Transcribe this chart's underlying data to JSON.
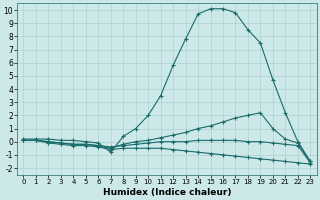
{
  "bg_color": "#cce8e8",
  "grid_color": "#b0d0d0",
  "line_color": "#1a6b6b",
  "xlabel": "Humidex (Indice chaleur)",
  "xlim": [
    -0.5,
    23.5
  ],
  "ylim": [
    -2.5,
    10.5
  ],
  "xticks": [
    0,
    1,
    2,
    3,
    4,
    5,
    6,
    7,
    8,
    9,
    10,
    11,
    12,
    13,
    14,
    15,
    16,
    17,
    18,
    19,
    20,
    21,
    22,
    23
  ],
  "yticks": [
    -2,
    -1,
    0,
    1,
    2,
    3,
    4,
    5,
    6,
    7,
    8,
    9,
    10
  ],
  "lines": [
    {
      "x": [
        0,
        1,
        2,
        3,
        4,
        5,
        6,
        7,
        8,
        9,
        10,
        11,
        12,
        13,
        14,
        15,
        16,
        17,
        18,
        19,
        20,
        21,
        22,
        23
      ],
      "y": [
        0.2,
        0.2,
        0.2,
        0.1,
        0.1,
        0.0,
        -0.1,
        -0.8,
        0.4,
        1.0,
        2.0,
        3.5,
        5.8,
        7.8,
        9.7,
        10.1,
        10.1,
        9.8,
        8.5,
        7.5,
        4.7,
        2.2,
        0.0,
        -1.5
      ]
    },
    {
      "x": [
        0,
        1,
        2,
        3,
        4,
        5,
        6,
        7,
        8,
        9,
        10,
        11,
        12,
        13,
        14,
        15,
        16,
        17,
        18,
        19,
        20,
        21,
        22,
        23
      ],
      "y": [
        0.1,
        0.1,
        0.0,
        -0.1,
        -0.2,
        -0.2,
        -0.3,
        -0.5,
        -0.2,
        0.0,
        0.1,
        0.3,
        0.5,
        0.7,
        1.0,
        1.2,
        1.5,
        1.8,
        2.0,
        2.2,
        1.0,
        0.2,
        -0.1,
        -1.5
      ]
    },
    {
      "x": [
        0,
        1,
        2,
        3,
        4,
        5,
        6,
        7,
        8,
        9,
        10,
        11,
        12,
        13,
        14,
        15,
        16,
        17,
        18,
        19,
        20,
        21,
        22,
        23
      ],
      "y": [
        0.1,
        0.1,
        -0.1,
        -0.2,
        -0.3,
        -0.3,
        -0.4,
        -0.6,
        -0.5,
        -0.5,
        -0.5,
        -0.5,
        -0.6,
        -0.7,
        -0.8,
        -0.9,
        -1.0,
        -1.1,
        -1.2,
        -1.3,
        -1.4,
        -1.5,
        -1.6,
        -1.7
      ]
    },
    {
      "x": [
        0,
        1,
        2,
        3,
        4,
        5,
        6,
        7,
        8,
        9,
        10,
        11,
        12,
        13,
        14,
        15,
        16,
        17,
        18,
        19,
        20,
        21,
        22,
        23
      ],
      "y": [
        0.1,
        0.1,
        0.0,
        -0.1,
        -0.2,
        -0.2,
        -0.3,
        -0.4,
        -0.3,
        -0.2,
        -0.1,
        0.0,
        0.0,
        0.0,
        0.1,
        0.1,
        0.1,
        0.1,
        0.0,
        0.0,
        -0.1,
        -0.2,
        -0.3,
        -1.6
      ]
    }
  ]
}
